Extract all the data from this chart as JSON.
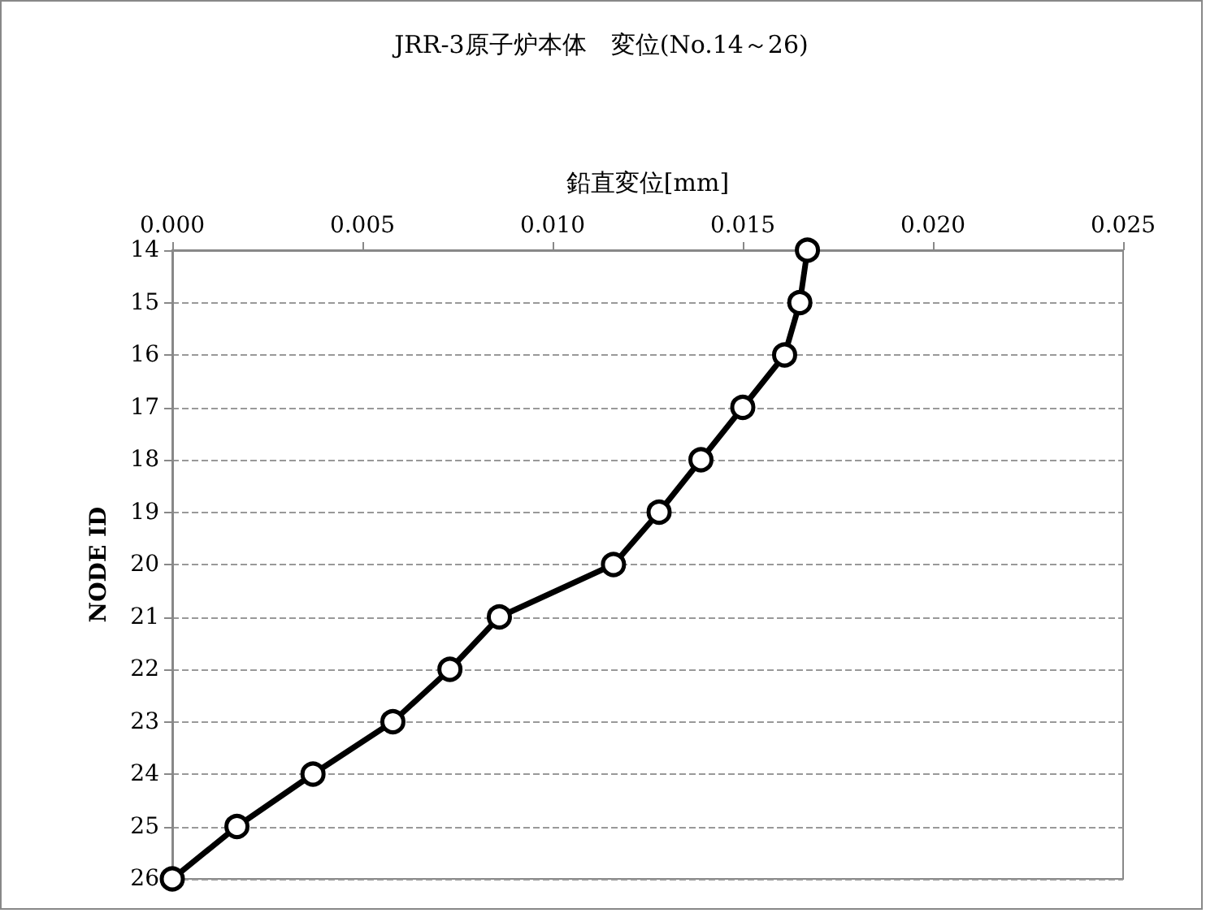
{
  "chart_data": {
    "type": "line",
    "title": "JRR-3原子炉本体　変位(No.14～26)",
    "xlabel": "鉛直変位[mm]",
    "ylabel": "NODE ID",
    "orientation": "horizontal",
    "categories": [
      "14",
      "15",
      "16",
      "17",
      "18",
      "19",
      "20",
      "21",
      "22",
      "23",
      "24",
      "25",
      "26"
    ],
    "series": [
      {
        "color": "#000000",
        "values": [
          0.0167,
          0.0165,
          0.0161,
          0.015,
          0.0139,
          0.0128,
          0.0116,
          0.0086,
          0.0073,
          0.0058,
          0.0037,
          0.0017,
          0.0
        ]
      }
    ],
    "xlim": [
      0,
      0.025
    ],
    "xticks": [
      {
        "value": 0,
        "label": "0.000"
      },
      {
        "value": 0.005,
        "label": "0.005"
      },
      {
        "value": 0.01,
        "label": "0.010"
      },
      {
        "value": 0.015,
        "label": "0.015"
      },
      {
        "value": 0.02,
        "label": "0.020"
      },
      {
        "value": 0.025,
        "label": "0.025"
      }
    ],
    "grid": "y",
    "marker": "circle",
    "line_style": "solid"
  }
}
